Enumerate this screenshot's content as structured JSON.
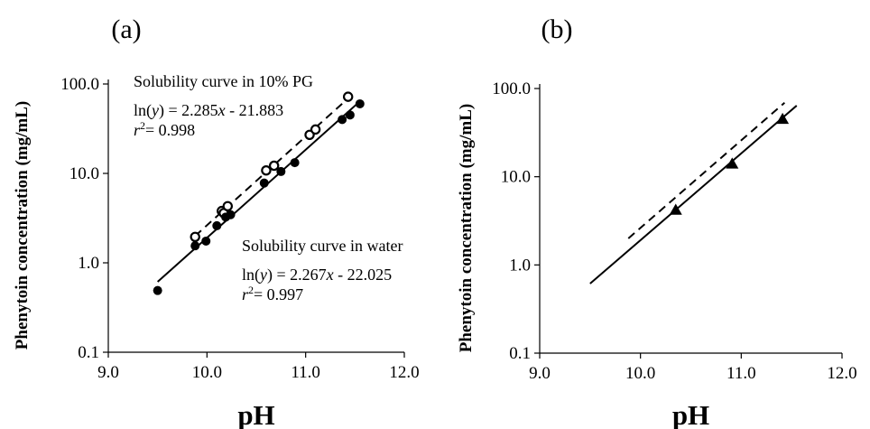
{
  "chart_data": [
    {
      "type": "scatter",
      "panel_label": "(a)",
      "xlabel": "pH",
      "ylabel": "Phenytoin concentration  (mg/mL)",
      "xlim": [
        9.0,
        12.0
      ],
      "ylim": [
        0.1,
        100.0
      ],
      "y_scale": "log",
      "x_ticks": [
        "9.0",
        "10.0",
        "11.0",
        "12.0"
      ],
      "y_ticks": [
        "0.1",
        "1.0",
        "10.0",
        "100.0"
      ],
      "series": [
        {
          "marker": "open-circle",
          "color": "#000000",
          "points": [
            [
              9.88,
              1.95
            ],
            [
              10.15,
              3.8
            ],
            [
              10.17,
              3.6
            ],
            [
              10.21,
              4.3
            ],
            [
              10.6,
              10.8
            ],
            [
              10.68,
              12.2
            ],
            [
              11.04,
              27.0
            ],
            [
              11.1,
              31.0
            ],
            [
              11.43,
              72.0
            ]
          ]
        },
        {
          "marker": "filled-circle",
          "color": "#000000",
          "points": [
            [
              9.5,
              0.49
            ],
            [
              9.88,
              1.55
            ],
            [
              9.99,
              1.75
            ],
            [
              10.1,
              2.6
            ],
            [
              10.19,
              3.25
            ],
            [
              10.24,
              3.45
            ],
            [
              10.58,
              7.8
            ],
            [
              10.75,
              10.5
            ],
            [
              10.89,
              13.2
            ],
            [
              11.37,
              40.0
            ],
            [
              11.45,
              45.0
            ],
            [
              11.55,
              60.0
            ]
          ]
        }
      ],
      "fit_lines": [
        {
          "style": "dashed",
          "x_range": [
            9.88,
            11.43
          ],
          "slope": 2.285,
          "intercept": -21.883
        },
        {
          "style": "solid",
          "x_range": [
            9.5,
            11.55
          ],
          "slope": 2.267,
          "intercept": -22.025
        }
      ],
      "annotations": [
        {
          "title": "Solubility curve in 10% PG",
          "eq_prefix": "ln(",
          "eq_var_y": "y",
          "eq_mid": ") = 2.285",
          "eq_var_x": "x",
          "eq_suffix": " - 21.883",
          "r_base": "r",
          "r_exp": "2",
          "r_value": "= 0.998"
        },
        {
          "title": "Solubility curve in water",
          "eq_prefix": "ln(",
          "eq_var_y": "y",
          "eq_mid": ") = 2.267",
          "eq_var_x": "x",
          "eq_suffix": " - 22.025",
          "r_base": "r",
          "r_exp": "2",
          "r_value": "= 0.997"
        }
      ]
    },
    {
      "type": "scatter",
      "panel_label": "(b)",
      "xlabel": "pH",
      "ylabel": "Phenytoin concentration (mg/mL)",
      "xlim": [
        9.0,
        12.0
      ],
      "ylim": [
        0.1,
        100.0
      ],
      "y_scale": "log",
      "x_ticks": [
        "9.0",
        "10.0",
        "11.0",
        "12.0"
      ],
      "y_ticks": [
        "0.1",
        "1.0",
        "10.0",
        "100.0"
      ],
      "series": [
        {
          "marker": "filled-triangle",
          "color": "#000000",
          "points": [
            [
              10.35,
              4.2
            ],
            [
              10.91,
              14.0
            ],
            [
              11.41,
              45.0
            ]
          ]
        }
      ],
      "fit_lines": [
        {
          "style": "dashed",
          "x_range": [
            9.88,
            11.43
          ],
          "slope": 2.285,
          "intercept": -21.883
        },
        {
          "style": "solid",
          "x_range": [
            9.5,
            11.55
          ],
          "slope": 2.267,
          "intercept": -22.025
        }
      ],
      "annotations": []
    }
  ]
}
